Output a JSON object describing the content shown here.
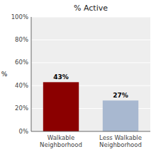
{
  "chart_data": {
    "type": "bar",
    "title": "% Active",
    "categories": [
      "Walkable\nNeighborhood",
      "Less Walkable\nNeighborhood"
    ],
    "values": [
      43,
      27
    ],
    "value_labels": [
      "43%",
      "27%"
    ],
    "colors": [
      "#8B0000",
      "#A8B8D0"
    ],
    "data_labels": true,
    "ylabel": "%",
    "ylim": [
      0,
      100
    ],
    "yticks": [
      {
        "value": 0,
        "label": "0%"
      },
      {
        "value": 20,
        "label": "20%"
      },
      {
        "value": 40,
        "label": "40%"
      },
      {
        "value": 60,
        "label": "60%"
      },
      {
        "value": 80,
        "label": "80%"
      },
      {
        "value": 100,
        "label": "100%"
      }
    ],
    "grid": true
  }
}
